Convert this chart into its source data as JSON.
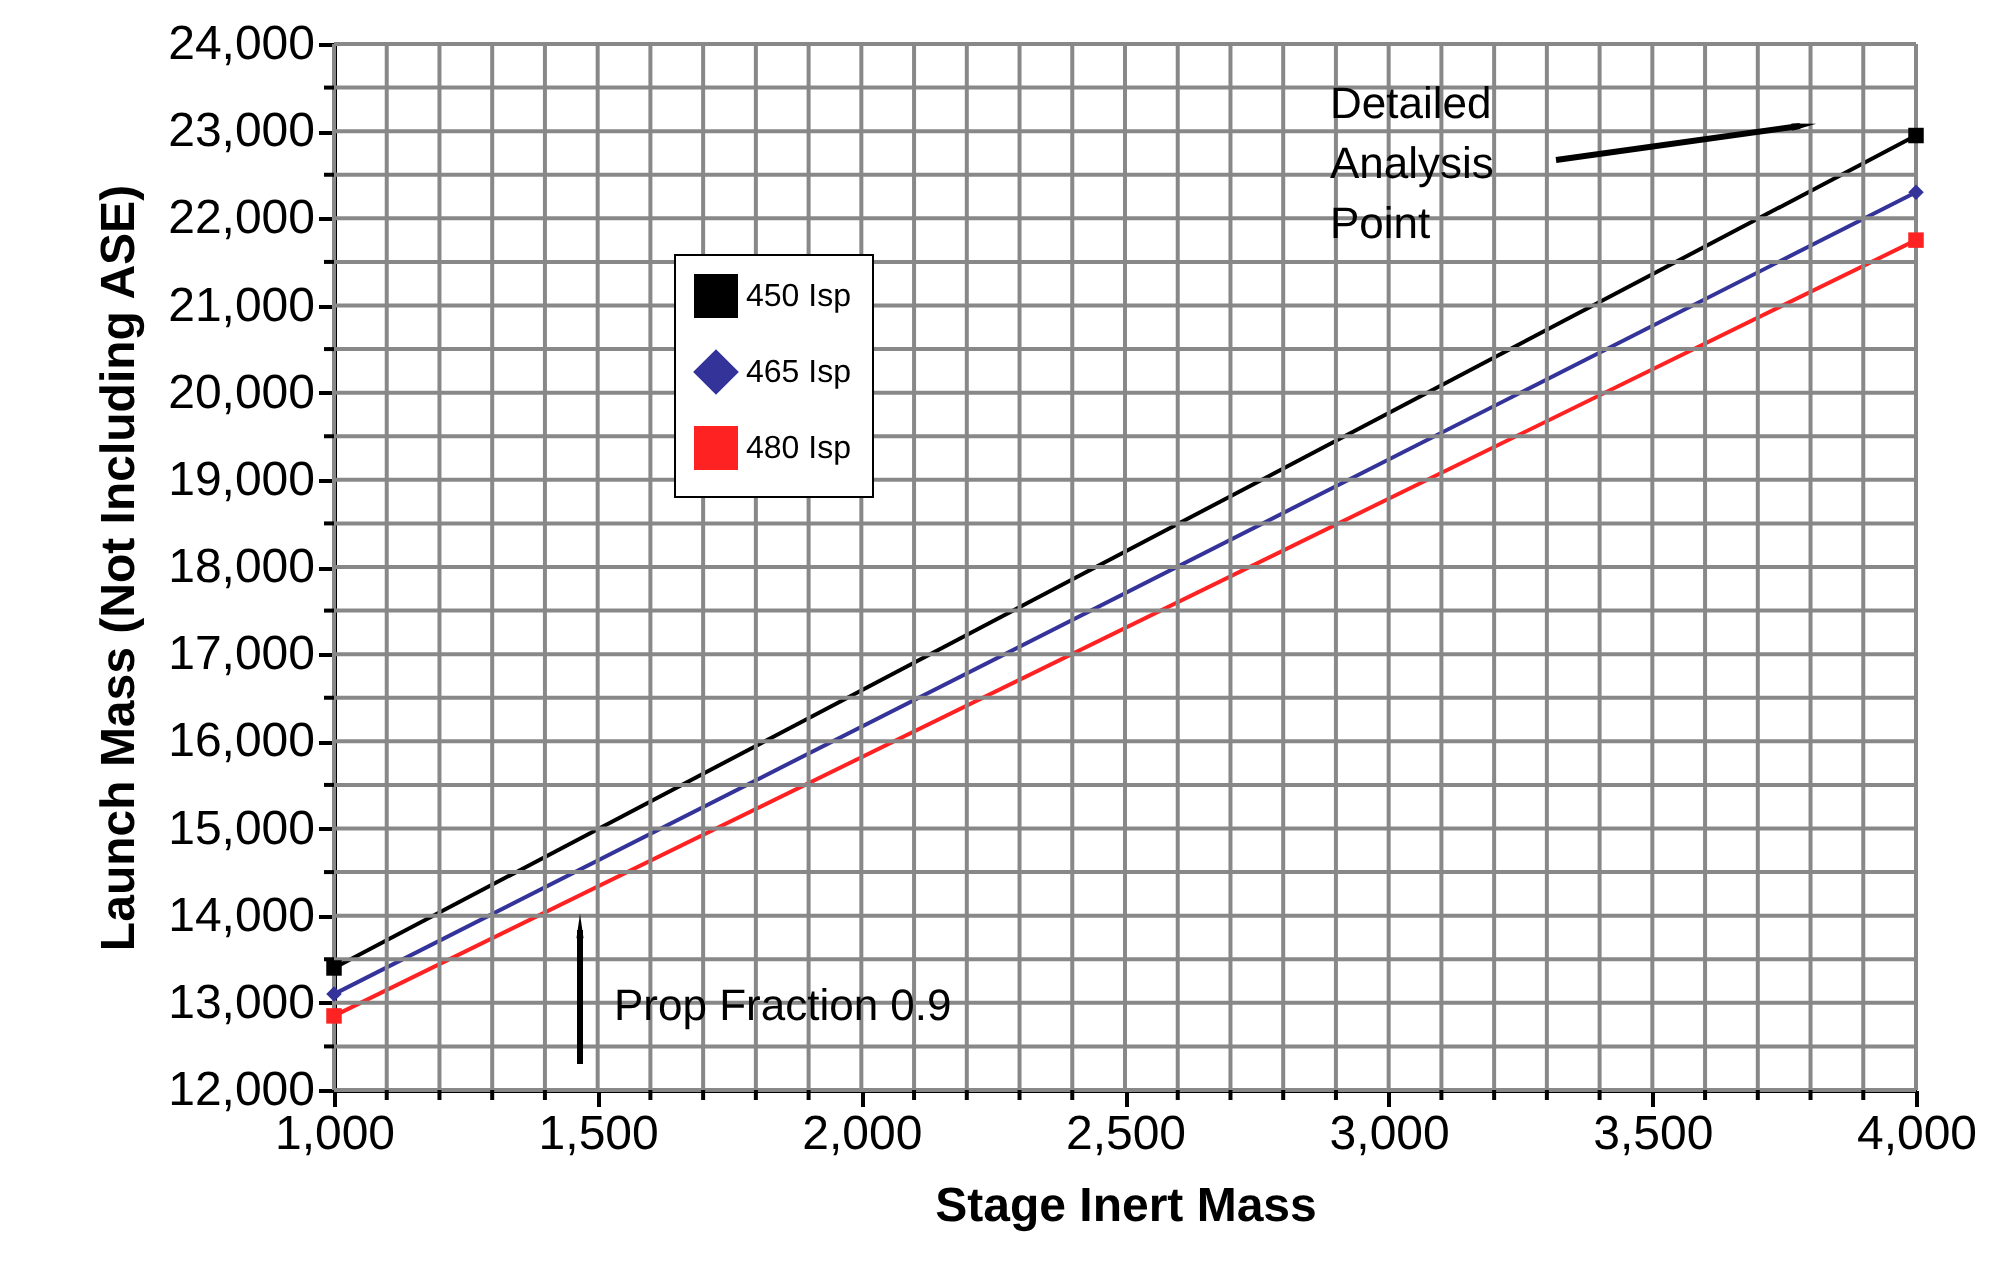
{
  "chart_data": {
    "type": "line",
    "xlabel": "Stage Inert Mass",
    "ylabel": "Launch Mass (Not Including ASE)",
    "x": [
      1000,
      4000
    ],
    "series": [
      {
        "name": "450 Isp",
        "color": "#000000",
        "values": [
          13400,
          22950
        ],
        "marker": "square"
      },
      {
        "name": "465 Isp",
        "color": "#333399",
        "values": [
          13100,
          22300
        ],
        "marker": "diamond"
      },
      {
        "name": "480 Isp",
        "color": "#ff2222",
        "values": [
          12850,
          21750
        ],
        "marker": "square"
      }
    ],
    "xlim": [
      1000,
      4000
    ],
    "ylim": [
      12000,
      24000
    ],
    "xticks": [
      {
        "value": 1000,
        "label": "1,000"
      },
      {
        "value": 1100,
        "label": null
      },
      {
        "value": 1200,
        "label": null
      },
      {
        "value": 1300,
        "label": null
      },
      {
        "value": 1400,
        "label": null
      },
      {
        "value": 1500,
        "label": "1,500"
      },
      {
        "value": 1600,
        "label": null
      },
      {
        "value": 1700,
        "label": null
      },
      {
        "value": 1800,
        "label": null
      },
      {
        "value": 1900,
        "label": null
      },
      {
        "value": 2000,
        "label": "2,000"
      },
      {
        "value": 2100,
        "label": null
      },
      {
        "value": 2200,
        "label": null
      },
      {
        "value": 2300,
        "label": null
      },
      {
        "value": 2400,
        "label": null
      },
      {
        "value": 2500,
        "label": "2,500"
      },
      {
        "value": 2600,
        "label": null
      },
      {
        "value": 2700,
        "label": null
      },
      {
        "value": 2800,
        "label": null
      },
      {
        "value": 2900,
        "label": null
      },
      {
        "value": 3000,
        "label": "3,000"
      },
      {
        "value": 3100,
        "label": null
      },
      {
        "value": 3200,
        "label": null
      },
      {
        "value": 3300,
        "label": null
      },
      {
        "value": 3400,
        "label": null
      },
      {
        "value": 3500,
        "label": "3,500"
      },
      {
        "value": 3600,
        "label": null
      },
      {
        "value": 3700,
        "label": null
      },
      {
        "value": 3800,
        "label": null
      },
      {
        "value": 3900,
        "label": null
      },
      {
        "value": 4000,
        "label": "4,000"
      }
    ],
    "yticks": [
      {
        "value": 12000,
        "label": "12,000"
      },
      {
        "value": 12500,
        "label": null
      },
      {
        "value": 13000,
        "label": "13,000"
      },
      {
        "value": 13500,
        "label": null
      },
      {
        "value": 14000,
        "label": "14,000"
      },
      {
        "value": 14500,
        "label": null
      },
      {
        "value": 15000,
        "label": "15,000"
      },
      {
        "value": 15500,
        "label": null
      },
      {
        "value": 16000,
        "label": "16,000"
      },
      {
        "value": 16500,
        "label": null
      },
      {
        "value": 17000,
        "label": "17,000"
      },
      {
        "value": 17500,
        "label": null
      },
      {
        "value": 18000,
        "label": "18,000"
      },
      {
        "value": 18500,
        "label": null
      },
      {
        "value": 19000,
        "label": "19,000"
      },
      {
        "value": 19500,
        "label": null
      },
      {
        "value": 20000,
        "label": "20,000"
      },
      {
        "value": 20500,
        "label": null
      },
      {
        "value": 21000,
        "label": "21,000"
      },
      {
        "value": 21500,
        "label": null
      },
      {
        "value": 22000,
        "label": "22,000"
      },
      {
        "value": 22500,
        "label": null
      },
      {
        "value": 23000,
        "label": "23,000"
      },
      {
        "value": 23500,
        "label": null
      },
      {
        "value": 24000,
        "label": "24,000"
      }
    ],
    "grid": true,
    "legend": "top left",
    "line_style": "solid",
    "annotations": [
      "Detailed Analysis Point",
      "Prop Fraction 0.9"
    ]
  }
}
